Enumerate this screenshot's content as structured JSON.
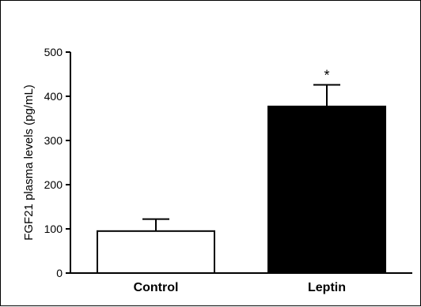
{
  "chart_data": {
    "type": "bar",
    "title": "",
    "xlabel": "",
    "ylabel": "FGF21 plasma levels (pg/mL)",
    "categories": [
      "Control",
      "Leptin"
    ],
    "values": [
      95,
      377
    ],
    "error_upper": [
      122,
      426
    ],
    "bar_colors": [
      "#ffffff",
      "#000000"
    ],
    "significance": [
      "",
      "*"
    ],
    "ylim": [
      0,
      500
    ],
    "yticks": [
      "0",
      "100",
      "200",
      "300",
      "400",
      "500"
    ],
    "grid": false
  }
}
